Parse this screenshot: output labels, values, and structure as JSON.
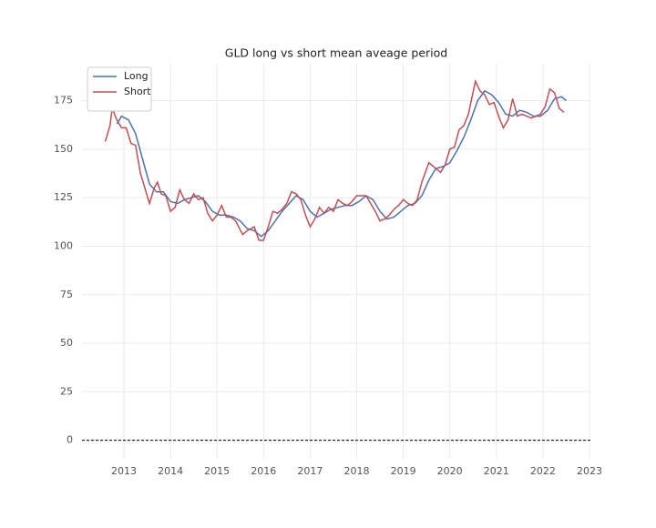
{
  "chart_data": {
    "type": "line",
    "title": "GLD long vs short mean aveage period",
    "xlim": [
      2012.1,
      2023.02
    ],
    "xticks": [
      2013,
      2014,
      2015,
      2016,
      2017,
      2018,
      2019,
      2020,
      2021,
      2022,
      2023
    ],
    "ylim": [
      -10,
      194
    ],
    "yticks": [
      0,
      25,
      50,
      75,
      100,
      125,
      150,
      175
    ],
    "grid": true,
    "hline": 0,
    "legend": "upper-left",
    "series": [
      {
        "name": "Long",
        "color": "#4c72b0",
        "x": [
          2012.85,
          2012.95,
          2013.1,
          2013.25,
          2013.4,
          2013.55,
          2013.7,
          2013.85,
          2014.0,
          2014.15,
          2014.3,
          2014.45,
          2014.6,
          2014.75,
          2014.9,
          2015.05,
          2015.2,
          2015.35,
          2015.5,
          2015.65,
          2015.8,
          2015.95,
          2016.1,
          2016.25,
          2016.4,
          2016.55,
          2016.7,
          2016.85,
          2017.0,
          2017.15,
          2017.3,
          2017.45,
          2017.6,
          2017.75,
          2017.9,
          2018.05,
          2018.2,
          2018.35,
          2018.5,
          2018.65,
          2018.8,
          2018.95,
          2019.1,
          2019.25,
          2019.4,
          2019.55,
          2019.7,
          2019.85,
          2020.0,
          2020.15,
          2020.3,
          2020.45,
          2020.6,
          2020.75,
          2020.9,
          2021.05,
          2021.2,
          2021.35,
          2021.5,
          2021.65,
          2021.8,
          2021.95,
          2022.1,
          2022.25,
          2022.4,
          2022.5
        ],
        "values": [
          163,
          167,
          165,
          158,
          145,
          132,
          128,
          128,
          123,
          122,
          124,
          125,
          126,
          123,
          118,
          116,
          116,
          115,
          113,
          109,
          108,
          105,
          108,
          113,
          118,
          122,
          126,
          124,
          118,
          115,
          117,
          119,
          120,
          121,
          121,
          123,
          126,
          124,
          118,
          114,
          115,
          118,
          121,
          122,
          126,
          134,
          140,
          141,
          143,
          149,
          156,
          165,
          175,
          180,
          178,
          174,
          168,
          167,
          170,
          169,
          167,
          167,
          170,
          176,
          177,
          175
        ]
      },
      {
        "name": "Short",
        "color": "#c44e52",
        "x": [
          2012.6,
          2012.7,
          2012.75,
          2012.85,
          2012.95,
          2013.05,
          2013.15,
          2013.25,
          2013.35,
          2013.45,
          2013.55,
          2013.65,
          2013.72,
          2013.8,
          2013.9,
          2014.0,
          2014.1,
          2014.2,
          2014.3,
          2014.4,
          2014.5,
          2014.6,
          2014.7,
          2014.8,
          2014.9,
          2015.0,
          2015.1,
          2015.2,
          2015.3,
          2015.4,
          2015.55,
          2015.65,
          2015.8,
          2015.9,
          2016.0,
          2016.1,
          2016.2,
          2016.3,
          2016.4,
          2016.5,
          2016.6,
          2016.7,
          2016.8,
          2016.9,
          2017.0,
          2017.1,
          2017.2,
          2017.3,
          2017.4,
          2017.5,
          2017.6,
          2017.7,
          2017.8,
          2017.9,
          2018.0,
          2018.1,
          2018.2,
          2018.3,
          2018.4,
          2018.5,
          2018.6,
          2018.7,
          2018.8,
          2018.9,
          2019.0,
          2019.1,
          2019.2,
          2019.3,
          2019.4,
          2019.55,
          2019.7,
          2019.8,
          2019.9,
          2020.0,
          2020.1,
          2020.2,
          2020.3,
          2020.4,
          2020.55,
          2020.65,
          2020.75,
          2020.85,
          2020.95,
          2021.05,
          2021.15,
          2021.25,
          2021.35,
          2021.45,
          2021.55,
          2021.65,
          2021.75,
          2021.85,
          2021.95,
          2022.05,
          2022.15,
          2022.25,
          2022.35,
          2022.45
        ],
        "values": [
          154,
          162,
          171,
          165,
          161,
          161,
          153,
          152,
          138,
          130,
          122,
          130,
          133,
          127,
          126,
          118,
          120,
          129,
          124,
          122,
          127,
          124,
          125,
          117,
          113,
          116,
          121,
          115,
          115,
          113,
          106,
          108,
          110,
          103,
          103,
          110,
          118,
          117,
          119,
          122,
          128,
          127,
          124,
          116,
          110,
          114,
          120,
          117,
          120,
          118,
          124,
          122,
          121,
          123,
          126,
          126,
          126,
          122,
          118,
          113,
          114,
          116,
          119,
          121,
          124,
          122,
          121,
          124,
          133,
          143,
          140,
          138,
          142,
          150,
          151,
          160,
          162,
          168,
          185,
          180,
          178,
          173,
          174,
          167,
          161,
          165,
          176,
          167,
          168,
          167,
          166,
          167,
          168,
          172,
          181,
          179,
          171,
          169
        ]
      }
    ]
  }
}
